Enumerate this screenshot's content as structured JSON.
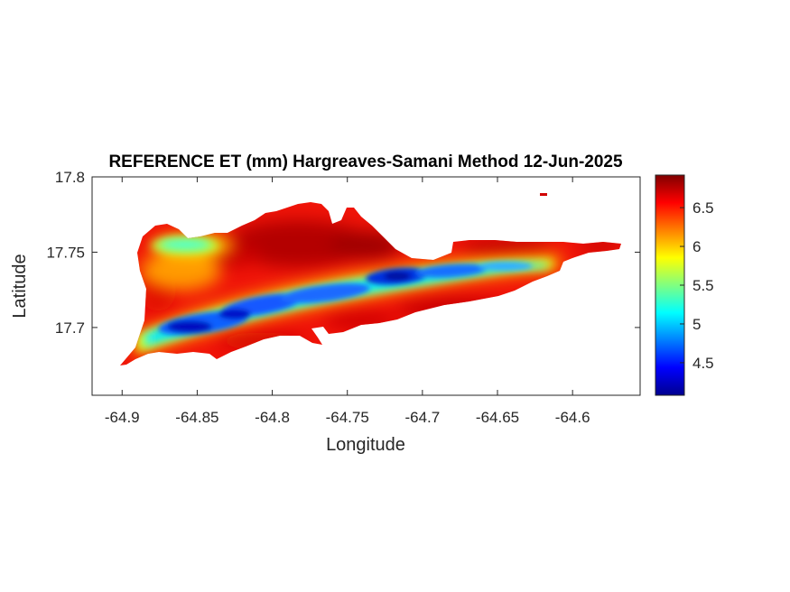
{
  "chart_data": {
    "type": "heatmap",
    "title": "REFERENCE ET (mm) Hargreaves-Samani Method  12-Jun-2025",
    "xlabel": "Longitude",
    "ylabel": "Latitude",
    "xlim": [
      -64.92,
      -64.555
    ],
    "ylim": [
      17.655,
      17.8
    ],
    "x_ticks": [
      -64.9,
      -64.85,
      -64.8,
      -64.75,
      -64.7,
      -64.65,
      -64.6
    ],
    "x_tick_labels": [
      "-64.9",
      "-64.85",
      "-64.8",
      "-64.75",
      "-64.7",
      "-64.65",
      "-64.6"
    ],
    "y_ticks": [
      17.7,
      17.75,
      17.8
    ],
    "y_tick_labels": [
      "17.7",
      "17.75",
      "17.8"
    ],
    "colorbar": {
      "colormap": "jet",
      "range": [
        4.08,
        6.92
      ],
      "ticks": [
        4.5,
        5,
        5.5,
        6,
        6.5
      ],
      "tick_labels": [
        "4.5",
        "5",
        "5.5",
        "6",
        "6.5"
      ]
    },
    "grid": false,
    "background": "#ffffff",
    "valley_minimum_band": [
      {
        "lon": -64.88,
        "lat": 17.704,
        "value": 5.0
      },
      {
        "lon": -64.85,
        "lat": 17.706,
        "value": 4.5
      },
      {
        "lon": -64.82,
        "lat": 17.71,
        "value": 4.6
      },
      {
        "lon": -64.79,
        "lat": 17.718,
        "value": 4.8
      },
      {
        "lon": -64.76,
        "lat": 17.725,
        "value": 4.7
      },
      {
        "lon": -64.72,
        "lat": 17.733,
        "value": 4.3
      },
      {
        "lon": -64.69,
        "lat": 17.737,
        "value": 4.5
      },
      {
        "lon": -64.66,
        "lat": 17.74,
        "value": 4.9
      },
      {
        "lon": -64.63,
        "lat": 17.745,
        "value": 5.6
      }
    ],
    "northern_hills_value": 6.8,
    "northwest_local_minimum": {
      "lon": -64.865,
      "lat": 17.757,
      "value": 5.2
    },
    "coastal_rim_value": 6.0
  }
}
